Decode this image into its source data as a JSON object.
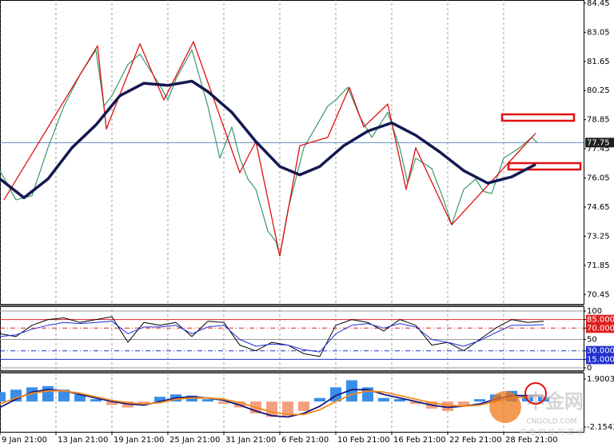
{
  "chart_data": [
    {
      "type": "line",
      "grid": true,
      "xlim": [
        0,
        146
      ],
      "ylim": [
        70.0,
        84.6
      ],
      "xticks": [
        {
          "value": 0,
          "label": "9 Jan 21:00"
        },
        {
          "value": 14,
          "label": "13 Jan 21:00"
        },
        {
          "value": 28,
          "label": "19 Jan 21:00"
        },
        {
          "value": 42,
          "label": "25 Jan 21:00"
        },
        {
          "value": 56,
          "label": "31 Jan 21:00"
        },
        {
          "value": 70,
          "label": "6 Feb 21:00"
        },
        {
          "value": 84,
          "label": "10 Feb 21:00"
        },
        {
          "value": 98,
          "label": "16 Feb 21:00"
        },
        {
          "value": 112,
          "label": "22 Feb 21:00"
        },
        {
          "value": 126,
          "label": "28 Feb 21:00"
        }
      ],
      "yticks": [
        84.45,
        83.05,
        81.65,
        80.25,
        78.85,
        77.45,
        76.05,
        74.65,
        73.25,
        71.85,
        70.45
      ],
      "current_price": 77.75,
      "series": [
        {
          "color": "#3a9a6a",
          "width": 1.2,
          "x": [
            0,
            4,
            8,
            12,
            16,
            20,
            24,
            26,
            28,
            32,
            35,
            40,
            42,
            44,
            48,
            52,
            55,
            58,
            60,
            62,
            64,
            67,
            69,
            70,
            72,
            74,
            76,
            79,
            82,
            84,
            87,
            90,
            93,
            97,
            100,
            102,
            104,
            108,
            111,
            113,
            116,
            119,
            121,
            123,
            126,
            130,
            133,
            134.4
          ],
          "values": [
            76.4,
            75.0,
            75.2,
            77.5,
            79.5,
            81.0,
            82.2,
            79.5,
            80.0,
            81.5,
            82.0,
            80.5,
            79.8,
            80.8,
            82.2,
            79.5,
            77.0,
            78.5,
            77.0,
            76.0,
            75.5,
            73.5,
            73.0,
            72.3,
            74.5,
            76.0,
            77.5,
            78.5,
            79.5,
            79.8,
            80.4,
            79.0,
            78.0,
            79.2,
            77.5,
            75.8,
            77.0,
            76.5,
            75.0,
            73.8,
            75.5,
            76.0,
            75.4,
            75.3,
            77.0,
            77.5,
            78.0,
            77.75
          ]
        },
        {
          "color": "#e01010",
          "width": 1.3,
          "x": [
            1,
            24.4,
            26.6,
            35,
            41,
            48.4,
            60,
            64,
            70,
            75,
            82,
            87.4,
            91,
            97,
            101.6,
            104,
            113,
            134
          ],
          "values": [
            75.0,
            82.4,
            78.4,
            82.5,
            79.8,
            82.6,
            76.3,
            77.8,
            72.3,
            77.6,
            78.0,
            80.4,
            78.5,
            79.6,
            75.5,
            77.5,
            73.8,
            78.2
          ]
        },
        {
          "color": "#141850",
          "width": 3.5,
          "x": [
            0,
            6,
            12,
            18,
            24,
            30,
            36,
            42,
            48,
            52,
            58,
            64,
            70,
            75,
            80,
            86,
            92,
            98,
            104,
            110,
            116,
            122,
            128,
            134
          ],
          "values": [
            76.0,
            75.1,
            76.0,
            77.5,
            78.6,
            80.0,
            80.6,
            80.5,
            80.7,
            80.2,
            79.2,
            77.8,
            76.6,
            76.2,
            76.6,
            77.6,
            78.3,
            78.7,
            78.1,
            77.3,
            76.4,
            75.8,
            76.1,
            76.7
          ]
        }
      ]
    },
    {
      "type": "line",
      "xlim": [
        0,
        146
      ],
      "ylim": [
        0,
        100
      ],
      "yticks": [
        100,
        {
          "value": 85,
          "label": "85.0000"
        },
        {
          "value": 70,
          "label": "70.0000"
        },
        50,
        {
          "value": 30,
          "label": "30.0000"
        },
        {
          "value": 15,
          "label": "15.0000"
        },
        0
      ],
      "level_colors": [
        "#999999",
        "#e02020",
        "#e02020",
        "#999999",
        "#2030d0",
        "#2030d0",
        "#999999"
      ],
      "series": [
        {
          "color": "#000000",
          "width": 1,
          "x": [
            0,
            4,
            8,
            12,
            16,
            20,
            24,
            28,
            32,
            36,
            40,
            44,
            48,
            52,
            56,
            60,
            64,
            68,
            72,
            76,
            80,
            84,
            88,
            92,
            96,
            100,
            104,
            108,
            112,
            116,
            120,
            124,
            128,
            132,
            136
          ],
          "values": [
            60,
            55,
            75,
            85,
            88,
            80,
            85,
            90,
            45,
            80,
            75,
            80,
            55,
            82,
            80,
            40,
            30,
            45,
            40,
            25,
            20,
            75,
            85,
            80,
            65,
            85,
            75,
            40,
            45,
            30,
            50,
            70,
            85,
            80,
            82
          ]
        },
        {
          "color": "#2030e0",
          "width": 1,
          "x": [
            0,
            4,
            8,
            12,
            16,
            20,
            24,
            28,
            32,
            36,
            40,
            44,
            48,
            52,
            56,
            60,
            64,
            68,
            72,
            76,
            80,
            84,
            88,
            92,
            96,
            100,
            104,
            108,
            112,
            116,
            120,
            124,
            128,
            132,
            136
          ],
          "values": [
            55,
            58,
            68,
            75,
            80,
            78,
            80,
            82,
            60,
            72,
            72,
            75,
            60,
            72,
            75,
            50,
            38,
            42,
            40,
            32,
            28,
            60,
            75,
            78,
            70,
            78,
            72,
            50,
            45,
            38,
            48,
            62,
            75,
            75,
            76
          ]
        }
      ]
    },
    {
      "type": "bar",
      "xlim": [
        0,
        146
      ],
      "ylim": [
        -2.1543,
        1.9003
      ],
      "yticks": [
        1.9003,
        -2.1543
      ],
      "positive_color": "#3a8ee8",
      "negative_color": "#f4a080",
      "x": [
        0,
        4,
        8,
        12,
        16,
        20,
        24,
        28,
        32,
        36,
        40,
        44,
        48,
        52,
        56,
        60,
        64,
        68,
        72,
        76,
        80,
        84,
        88,
        92,
        96,
        100,
        104,
        108,
        112,
        116,
        120,
        124,
        128,
        132,
        136
      ],
      "values": [
        0.8,
        1.0,
        1.2,
        1.3,
        1.0,
        0.6,
        0.2,
        -0.3,
        -0.5,
        -0.2,
        0.4,
        0.6,
        0.5,
        0.2,
        -0.2,
        -0.5,
        -1.0,
        -1.3,
        -1.2,
        -0.8,
        0.3,
        1.2,
        1.8,
        1.2,
        0.3,
        0.2,
        -0.2,
        -0.6,
        -0.8,
        -0.4,
        0.2,
        0.6,
        0.9,
        0.5,
        0.4
      ],
      "series": [
        {
          "color": "#141880",
          "width": 1.8,
          "x": [
            0,
            4,
            8,
            12,
            16,
            20,
            24,
            28,
            32,
            36,
            40,
            44,
            48,
            52,
            56,
            60,
            64,
            68,
            72,
            76,
            80,
            84,
            88,
            92,
            96,
            100,
            104,
            108,
            112,
            116,
            120,
            124,
            128,
            132,
            136
          ],
          "values": [
            -0.5,
            0.2,
            0.8,
            1.0,
            0.9,
            0.6,
            0.3,
            0,
            -0.2,
            -0.3,
            0,
            0.3,
            0.4,
            0.3,
            0.1,
            -0.3,
            -0.8,
            -1.2,
            -1.3,
            -1.0,
            -0.4,
            0.5,
            1.0,
            1.0,
            0.6,
            0.3,
            0,
            -0.3,
            -0.5,
            -0.4,
            -0.2,
            0.2,
            0.5,
            0.5,
            0.5
          ]
        },
        {
          "color": "#f08a20",
          "width": 1.8,
          "x": [
            0,
            4,
            8,
            12,
            16,
            20,
            24,
            28,
            32,
            36,
            40,
            44,
            48,
            52,
            56,
            60,
            64,
            68,
            72,
            76,
            80,
            84,
            88,
            92,
            96,
            100,
            104,
            108,
            112,
            116,
            120,
            124,
            128,
            132,
            136
          ],
          "values": [
            -0.2,
            0.3,
            0.7,
            0.9,
            0.9,
            0.7,
            0.4,
            0.1,
            -0.1,
            -0.2,
            -0.1,
            0.2,
            0.3,
            0.3,
            0.2,
            -0.1,
            -0.5,
            -0.9,
            -1.1,
            -1.1,
            -0.7,
            0,
            0.6,
            0.9,
            0.8,
            0.5,
            0.2,
            -0.1,
            -0.3,
            -0.4,
            -0.3,
            0,
            0.3,
            0.4,
            0.5
          ]
        }
      ]
    }
  ],
  "watermark": {
    "logo": "中金网",
    "url": "CNGOLD.COM",
    "tagline": "中 金 财 经 网 媒 体"
  }
}
